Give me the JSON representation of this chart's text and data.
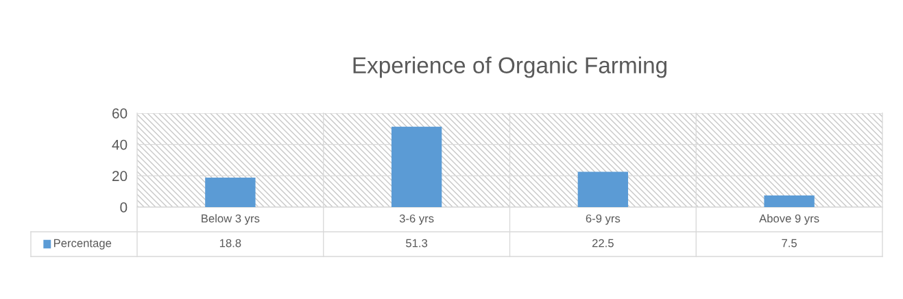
{
  "chart_data": {
    "type": "bar",
    "title": "Experience of Organic Farming",
    "categories": [
      "Below 3 yrs",
      "3-6 yrs",
      "6-9 yrs",
      "Above 9 yrs"
    ],
    "series": [
      {
        "name": "Percentage",
        "color": "#5b9bd5",
        "values": [
          18.8,
          51.3,
          22.5,
          7.5
        ]
      }
    ],
    "ylim": [
      0,
      60
    ],
    "yticks": [
      0,
      20,
      40,
      60
    ],
    "grid": "y",
    "data_labels": true,
    "legend": "bottom"
  }
}
